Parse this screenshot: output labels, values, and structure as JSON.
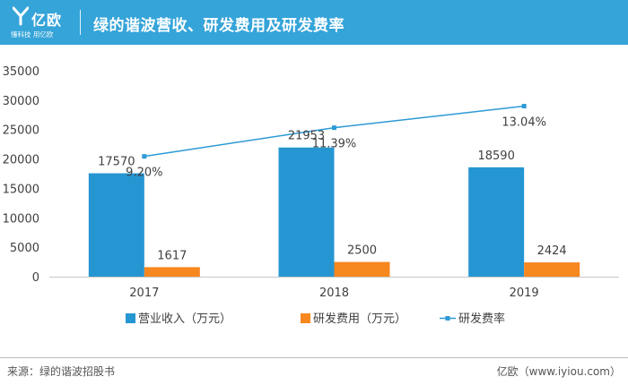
{
  "header": {
    "logo_text": "亿欧",
    "logo_slogan": "懂科技 用亿欧",
    "title": "绿的谐波营收、研发费用及研发费率"
  },
  "colors": {
    "header_bg": "#35a4d9",
    "revenue": "#2696d2",
    "rd_cost": "#f7871f",
    "rd_rate": "#2c9ad5"
  },
  "chart_data": {
    "type": "bar",
    "title": "绿的谐波营收、研发费用及研发费率",
    "categories": [
      "2017",
      "2018",
      "2019"
    ],
    "ylim": [
      0,
      35000
    ],
    "yticks": [
      0,
      5000,
      10000,
      15000,
      20000,
      25000,
      30000,
      35000
    ],
    "series": [
      {
        "name": "营业收入（万元）",
        "type": "bar",
        "values": [
          17570,
          21953,
          18590
        ],
        "labels": [
          "17570",
          "21953",
          "18590"
        ]
      },
      {
        "name": "研发费用（万元）",
        "type": "bar",
        "values": [
          1617,
          2500,
          2424
        ],
        "labels": [
          "1617",
          "2500",
          "2424"
        ]
      },
      {
        "name": "研发费率",
        "type": "line",
        "values": [
          9.2,
          11.39,
          13.04
        ],
        "labels": [
          "9.20%",
          "11.39%",
          "13.04%"
        ],
        "unit": "%"
      }
    ],
    "legend_position": "bottom"
  },
  "footer": {
    "source": "来源：绿的谐波招股书",
    "site": "亿欧（www.iyiou.com）"
  }
}
